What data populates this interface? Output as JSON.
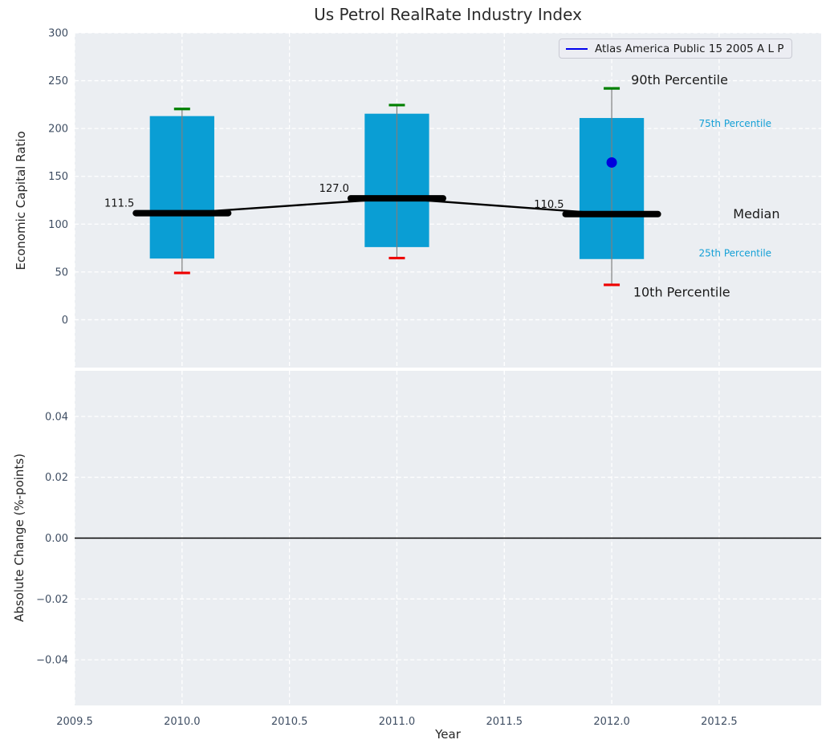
{
  "figure": {
    "title": "Us Petrol RealRate Industry Index",
    "xlabel": "Year",
    "ylabel_top": "Economic Capital Ratio",
    "ylabel_bottom": "Absolute Change (%-points)"
  },
  "legend": {
    "label": "Atlas America Public 15 2005 A L P",
    "line_color": "#0000ee"
  },
  "colors": {
    "axes_background": "#ebeef2",
    "gridline": "#ffffff",
    "box_fill": "#0a9ed4",
    "whisker_line": "#7f7f7f",
    "cap_90th": "#008000",
    "cap_10th": "#ee0000",
    "median_line": "#000000",
    "company_point": "#0000dd",
    "zero_line": "#000000",
    "tick_label": "#3f4e63",
    "annotation_dark": "#1a1a1a",
    "annotation_percentile": "#14a0d6"
  },
  "chart_data": [
    {
      "type": "boxplot",
      "panel": "top",
      "title": "Us Petrol RealRate Industry Index",
      "ylabel": "Economic Capital Ratio",
      "xlim": [
        2009.5,
        2012.975
      ],
      "ylim": [
        -50,
        300
      ],
      "yticks": [
        0,
        50,
        100,
        150,
        200,
        250,
        300
      ],
      "ytick_labels": [
        "0",
        "50",
        "100",
        "150",
        "200",
        "250",
        "300"
      ],
      "grid": true,
      "legend_position": "upper right",
      "box_width_years": 0.3,
      "median_cap_halfwidth_years": 0.215,
      "boxes": [
        {
          "year": 2010,
          "p10": 49,
          "p25": 64,
          "median": 111.5,
          "p75": 213,
          "p90": 220.5
        },
        {
          "year": 2011,
          "p10": 64.5,
          "p25": 76,
          "median": 127.0,
          "p75": 215.5,
          "p90": 224.5
        },
        {
          "year": 2012,
          "p10": 36.5,
          "p25": 63.5,
          "median": 110.5,
          "p75": 211,
          "p90": 242
        }
      ],
      "median_trend": {
        "years": [
          2010,
          2011,
          2012
        ],
        "values": [
          111.5,
          127.0,
          110.5
        ]
      },
      "median_value_labels": [
        "111.5",
        "127.0",
        "110.5"
      ],
      "company_point": {
        "year": 2012,
        "value": 164.5
      },
      "annotations": [
        {
          "text": "90th Percentile",
          "year": 2012.09,
          "value": 251,
          "style": "dark",
          "size": 16
        },
        {
          "text": "75th Percentile",
          "year": 2012.405,
          "value": 205.5,
          "style": "percentile",
          "size": 12
        },
        {
          "text": "Median",
          "year": 2012.565,
          "value": 111,
          "style": "dark",
          "size": 16
        },
        {
          "text": "25th Percentile",
          "year": 2012.405,
          "value": 70,
          "style": "percentile",
          "size": 12
        },
        {
          "text": "10th Percentile",
          "year": 2012.1,
          "value": 29,
          "style": "dark",
          "size": 16
        }
      ]
    },
    {
      "type": "line",
      "panel": "bottom",
      "ylabel": "Absolute Change (%-points)",
      "xlabel": "Year",
      "xlim": [
        2009.5,
        2012.975
      ],
      "ylim": [
        -0.055,
        0.055
      ],
      "yticks": [
        0.04,
        0.02,
        0.0,
        -0.02,
        -0.04
      ],
      "ytick_labels": [
        "0.04",
        "0.02",
        "0.00",
        "−0.02",
        "−0.04"
      ],
      "xticks": [
        2009.5,
        2010.0,
        2010.5,
        2011.0,
        2011.5,
        2012.0,
        2012.5
      ],
      "xtick_labels": [
        "2009.5",
        "2010.0",
        "2010.5",
        "2011.0",
        "2011.5",
        "2012.0",
        "2012.5"
      ],
      "grid": true,
      "zero_line": 0.0,
      "series": []
    }
  ]
}
